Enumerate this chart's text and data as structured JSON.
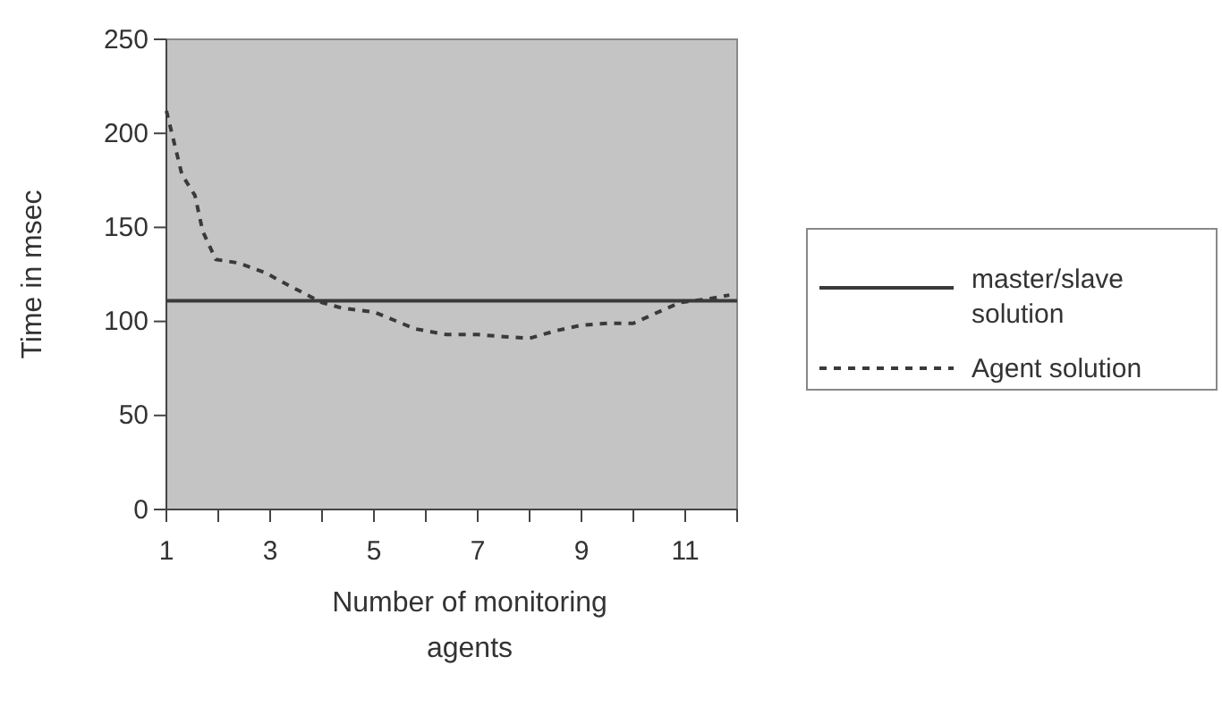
{
  "chart_data": {
    "type": "line",
    "xlabel": "Number of monitoring agents",
    "ylabel": "Time in msec",
    "xlim": [
      1,
      12
    ],
    "xticks": [
      1,
      {
        "value": 2,
        "label": null
      },
      3,
      {
        "value": 4,
        "label": null
      },
      5,
      {
        "value": 6,
        "label": null
      },
      7,
      {
        "value": 8,
        "label": null
      },
      9,
      {
        "value": 10,
        "label": null
      },
      11,
      {
        "value": 12,
        "label": null
      }
    ],
    "ylim": [
      0,
      250
    ],
    "yticks": [
      0,
      50,
      100,
      150,
      200,
      250
    ],
    "legend": "right",
    "grid": false,
    "series": [
      {
        "name": "master/slave solution",
        "color": "#3a3a3a",
        "line_style": "solid",
        "x": [
          1,
          12
        ],
        "values": [
          111,
          111
        ]
      },
      {
        "name": "Agent solution",
        "color": "#3a3a3a",
        "line_style": "dashed",
        "x": [
          1,
          1.3,
          1.55,
          1.7,
          1.95,
          2.4,
          2.9,
          3.3,
          4,
          4.4,
          5,
          5.8,
          6.4,
          7,
          7.45,
          8,
          8.5,
          9,
          9.5,
          10,
          10.4,
          10.9,
          11.45,
          11.85
        ],
        "values": [
          212,
          178,
          167,
          148,
          133,
          131,
          126,
          120,
          110,
          107,
          105,
          96,
          93,
          93,
          92,
          91,
          95,
          98,
          99,
          99,
          104,
          110,
          112,
          114
        ]
      }
    ]
  }
}
